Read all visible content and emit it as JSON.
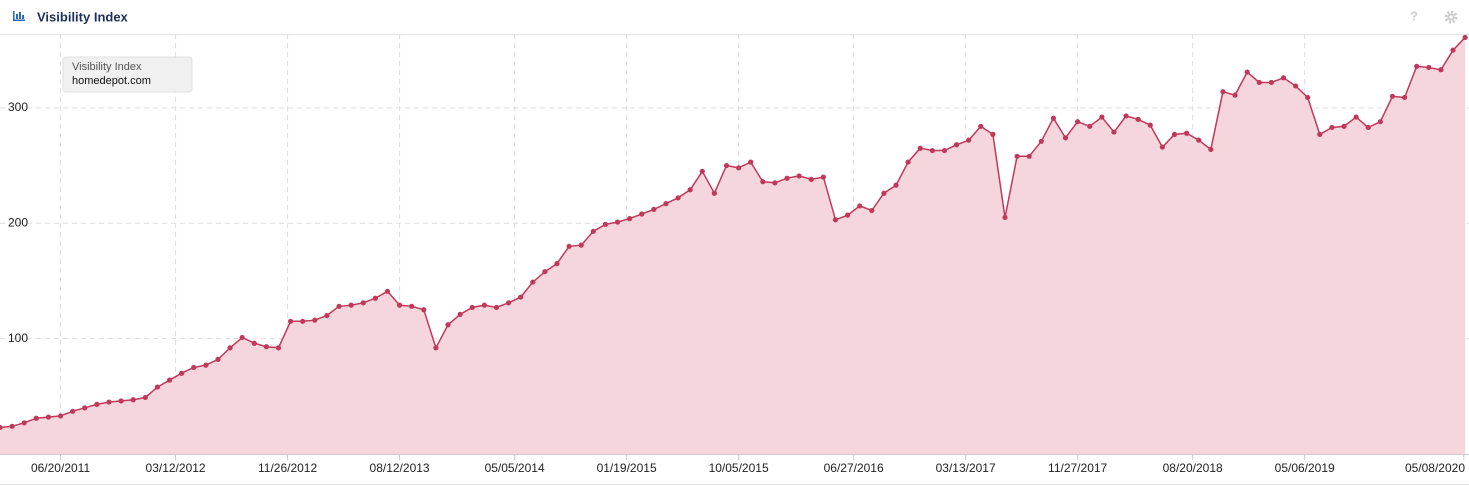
{
  "header": {
    "title": "Visibility Index",
    "help": "?"
  },
  "chart_data": {
    "type": "area",
    "legend_title": "Visibility Index",
    "x": [
      "01/31/2011",
      "02/28/2011",
      "03/28/2011",
      "04/25/2011",
      "05/23/2011",
      "06/20/2011",
      "07/18/2011",
      "08/15/2011",
      "09/12/2011",
      "10/10/2011",
      "11/07/2011",
      "12/05/2011",
      "01/02/2012",
      "01/30/2012",
      "02/27/2012",
      "03/26/2012",
      "04/23/2012",
      "05/21/2012",
      "06/18/2012",
      "07/16/2012",
      "08/13/2012",
      "09/10/2012",
      "10/08/2012",
      "11/05/2012",
      "12/03/2012",
      "12/31/2012",
      "01/28/2013",
      "02/25/2013",
      "03/25/2013",
      "04/22/2013",
      "05/20/2013",
      "06/17/2013",
      "07/15/2013",
      "08/12/2013",
      "09/09/2013",
      "10/07/2013",
      "11/04/2013",
      "12/02/2013",
      "12/30/2013",
      "01/27/2014",
      "02/24/2014",
      "03/24/2014",
      "04/21/2014",
      "05/19/2014",
      "06/16/2014",
      "07/14/2014",
      "08/11/2014",
      "09/08/2014",
      "10/06/2014",
      "11/03/2014",
      "12/01/2014",
      "12/29/2014",
      "01/26/2015",
      "02/23/2015",
      "03/23/2015",
      "04/20/2015",
      "05/18/2015",
      "06/15/2015",
      "07/13/2015",
      "08/10/2015",
      "09/07/2015",
      "10/05/2015",
      "11/02/2015",
      "11/30/2015",
      "12/28/2015",
      "01/25/2016",
      "02/22/2016",
      "03/21/2016",
      "04/18/2016",
      "05/16/2016",
      "06/13/2016",
      "07/11/2016",
      "08/08/2016",
      "09/05/2016",
      "10/03/2016",
      "10/31/2016",
      "11/28/2016",
      "12/26/2016",
      "01/23/2017",
      "02/20/2017",
      "03/20/2017",
      "04/17/2017",
      "05/15/2017",
      "06/12/2017",
      "07/10/2017",
      "08/07/2017",
      "09/04/2017",
      "10/02/2017",
      "10/30/2017",
      "11/27/2017",
      "12/25/2017",
      "01/22/2018",
      "02/19/2018",
      "03/19/2018",
      "04/16/2018",
      "05/14/2018",
      "06/11/2018",
      "07/09/2018",
      "08/06/2018",
      "09/03/2018",
      "10/01/2018",
      "10/29/2018",
      "11/26/2018",
      "12/24/2018",
      "01/21/2019",
      "02/18/2019",
      "03/18/2019",
      "04/15/2019",
      "05/13/2019",
      "06/10/2019",
      "07/08/2019",
      "08/05/2019",
      "09/02/2019",
      "09/30/2019",
      "10/28/2019",
      "11/25/2019",
      "12/23/2019",
      "01/20/2020",
      "02/17/2020",
      "03/16/2020",
      "04/13/2020",
      "05/11/2020"
    ],
    "series": [
      {
        "name": "homedepot.com",
        "color": "#c0395a",
        "fill": "#f5d6dd",
        "values": [
          23,
          24,
          27,
          31,
          32,
          33,
          37,
          40,
          43,
          45,
          46,
          47,
          49,
          58,
          64,
          70,
          75,
          77,
          82,
          92,
          101,
          96,
          93,
          92,
          115,
          115,
          116,
          120,
          128,
          129,
          131,
          135,
          141,
          129,
          128,
          125,
          92,
          112,
          121,
          127,
          129,
          127,
          131,
          136,
          149,
          158,
          165,
          180,
          181,
          193,
          199,
          201,
          204,
          208,
          212,
          217,
          222,
          229,
          245,
          226,
          250,
          248,
          253,
          236,
          235,
          239,
          241,
          238,
          240,
          203,
          207,
          215,
          211,
          226,
          233,
          253,
          265,
          263,
          263,
          268,
          272,
          284,
          277,
          205,
          258,
          258,
          271,
          291,
          274,
          288,
          284,
          292,
          279,
          293,
          290,
          285,
          266,
          277,
          278,
          272,
          264,
          314,
          311,
          331,
          322,
          322,
          326,
          319,
          309,
          277,
          283,
          284,
          292,
          283,
          288,
          310,
          309,
          336,
          335,
          333,
          350,
          361
        ]
      }
    ],
    "xlim": [
      "01/31/2011",
      "05/20/2020"
    ],
    "xticks": [
      "06/20/2011",
      "03/12/2012",
      "11/26/2012",
      "08/12/2013",
      "05/05/2014",
      "01/19/2015",
      "10/05/2015",
      "06/27/2016",
      "03/13/2017",
      "11/27/2017",
      "08/20/2018",
      "05/06/2019",
      "05/08/2020"
    ],
    "ylim": [
      0,
      364
    ],
    "yticks": [
      100,
      200,
      300
    ],
    "grid": true
  }
}
